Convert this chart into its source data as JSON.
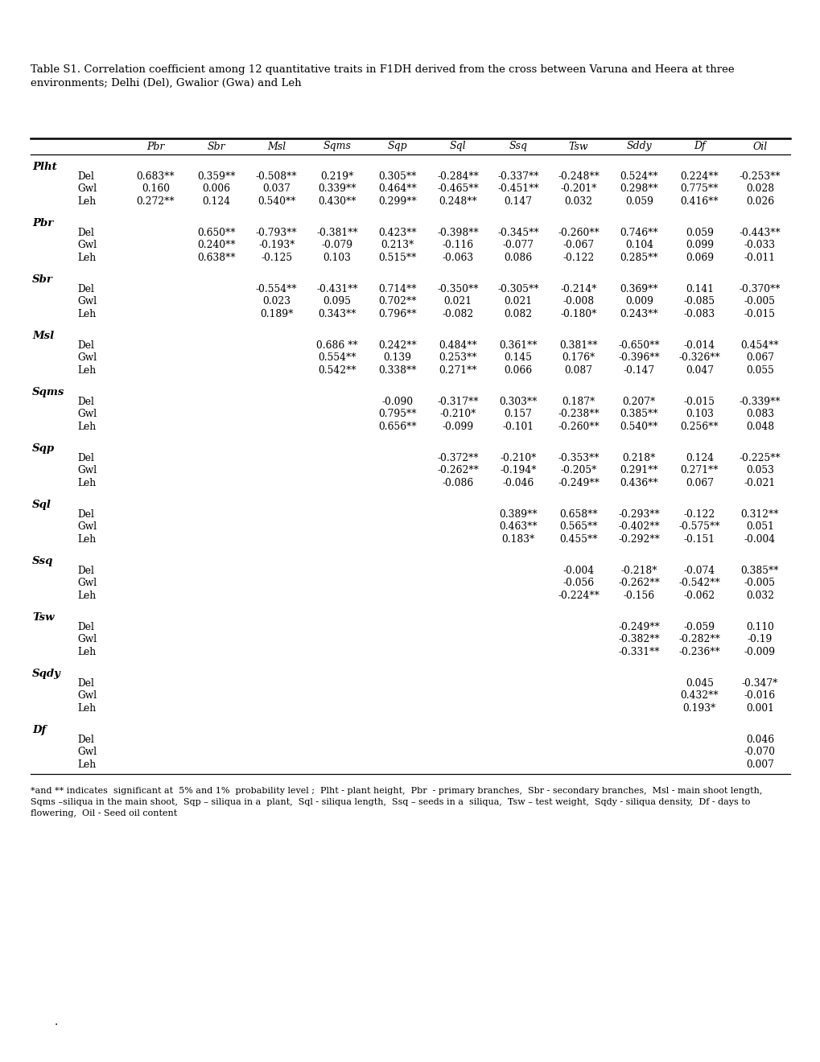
{
  "title": "Table S1. Correlation coefficient among 12 quantitative traits in F1DH derived from the cross between Varuna and Heera at three\nenvironments; Delhi (Del), Gwalior (Gwa) and Leh",
  "footnote": "*and ** indicates  significant at  5% and 1%  probability level ;  Plht - plant height,  Pbr  - primary branches,  Sbr - secondary branches,  Msl - main shoot length,\nSqms –siliqua in the main shoot,  Sqp – siliqua in a  plant,  Sql - siliqua length,  Ssq – seeds in a  siliqua,  Tsw – test weight,  Sqdy - siliqua density,  Df - days to\nflowering,  Oil - Seed oil content",
  "dot": ".",
  "columns": [
    "Pbr",
    "Sbr",
    "Msl",
    "Sqms",
    "Sqp",
    "Sql",
    "Ssq",
    "Tsw",
    "Sddy",
    "Df",
    "Oil"
  ],
  "row_groups": [
    {
      "label": "Plht",
      "rows": [
        {
          "env": "Del",
          "values": [
            "0.683**",
            "0.359**",
            "-0.508**",
            "0.219*",
            "0.305**",
            "-0.284**",
            "-0.337**",
            "-0.248**",
            "0.524**",
            "0.224**",
            "-0.253**"
          ]
        },
        {
          "env": "Gwl",
          "values": [
            "0.160",
            "0.006",
            "0.037",
            "0.339**",
            "0.464**",
            "-0.465**",
            "-0.451**",
            "-0.201*",
            "0.298**",
            "0.775**",
            "0.028"
          ]
        },
        {
          "env": "Leh",
          "values": [
            "0.272**",
            "0.124",
            "0.540**",
            "0.430**",
            "0.299**",
            "0.248**",
            "0.147",
            "0.032",
            "0.059",
            "0.416**",
            "0.026"
          ]
        }
      ]
    },
    {
      "label": "Pbr",
      "rows": [
        {
          "env": "Del",
          "values": [
            "",
            "0.650**",
            "-0.793**",
            "-0.381**",
            "0.423**",
            "-0.398**",
            "-0.345**",
            "-0.260**",
            "0.746**",
            "0.059",
            "-0.443**"
          ]
        },
        {
          "env": "Gwl",
          "values": [
            "",
            "0.240**",
            "-0.193*",
            "-0.079",
            "0.213*",
            "-0.116",
            "-0.077",
            "-0.067",
            "0.104",
            "0.099",
            "-0.033"
          ]
        },
        {
          "env": "Leh",
          "values": [
            "",
            "0.638**",
            "-0.125",
            "0.103",
            "0.515**",
            "-0.063",
            "0.086",
            "-0.122",
            "0.285**",
            "0.069",
            "-0.011"
          ]
        }
      ]
    },
    {
      "label": "Sbr",
      "rows": [
        {
          "env": "Del",
          "values": [
            "",
            "",
            "-0.554**",
            "-0.431**",
            "0.714**",
            "-0.350**",
            "-0.305**",
            "-0.214*",
            "0.369**",
            "0.141",
            "-0.370**"
          ]
        },
        {
          "env": "Gwl",
          "values": [
            "",
            "",
            "0.023",
            "0.095",
            "0.702**",
            "0.021",
            "0.021",
            "-0.008",
            "0.009",
            "-0.085",
            "-0.005"
          ]
        },
        {
          "env": "Leh",
          "values": [
            "",
            "",
            "0.189*",
            "0.343**",
            "0.796**",
            "-0.082",
            "0.082",
            "-0.180*",
            "0.243**",
            "-0.083",
            "-0.015"
          ]
        }
      ]
    },
    {
      "label": "Msl",
      "rows": [
        {
          "env": "Del",
          "values": [
            "",
            "",
            "",
            "0.686 **",
            "0.242**",
            "0.484**",
            "0.361**",
            "0.381**",
            "-0.650**",
            "-0.014",
            "0.454**"
          ]
        },
        {
          "env": "Gwl",
          "values": [
            "",
            "",
            "",
            "0.554**",
            "0.139",
            "0.253**",
            "0.145",
            "0.176*",
            "-0.396**",
            "-0.326**",
            "0.067"
          ]
        },
        {
          "env": "Leh",
          "values": [
            "",
            "",
            "",
            "0.542**",
            "0.338**",
            "0.271**",
            "0.066",
            "0.087",
            "-0.147",
            "0.047",
            "0.055"
          ]
        }
      ]
    },
    {
      "label": "Sqms",
      "rows": [
        {
          "env": "Del",
          "values": [
            "",
            "",
            "",
            "",
            "-0.090",
            "-0.317**",
            "0.303**",
            "0.187*",
            "0.207*",
            "-0.015",
            "-0.339**"
          ]
        },
        {
          "env": "Gwl",
          "values": [
            "",
            "",
            "",
            "",
            "0.795**",
            "-0.210*",
            "0.157",
            "-0.238**",
            "0.385**",
            "0.103",
            "0.083"
          ]
        },
        {
          "env": "Leh",
          "values": [
            "",
            "",
            "",
            "",
            "0.656**",
            "-0.099",
            "-0.101",
            "-0.260**",
            "0.540**",
            "0.256**",
            "0.048"
          ]
        }
      ]
    },
    {
      "label": "Sqp",
      "rows": [
        {
          "env": "Del",
          "values": [
            "",
            "",
            "",
            "",
            "",
            "-0.372**",
            "-0.210*",
            "-0.353**",
            "0.218*",
            "0.124",
            "-0.225**"
          ]
        },
        {
          "env": "Gwl",
          "values": [
            "",
            "",
            "",
            "",
            "",
            "-0.262**",
            "-0.194*",
            "-0.205*",
            "0.291**",
            "0.271**",
            "0.053"
          ]
        },
        {
          "env": "Leh",
          "values": [
            "",
            "",
            "",
            "",
            "",
            "-0.086",
            "-0.046",
            "-0.249**",
            "0.436**",
            "0.067",
            "-0.021"
          ]
        }
      ]
    },
    {
      "label": "Sql",
      "rows": [
        {
          "env": "Del",
          "values": [
            "",
            "",
            "",
            "",
            "",
            "",
            "0.389**",
            "0.658**",
            "-0.293**",
            "-0.122",
            "0.312**"
          ]
        },
        {
          "env": "Gwl",
          "values": [
            "",
            "",
            "",
            "",
            "",
            "",
            "0.463**",
            "0.565**",
            "-0.402**",
            "-0.575**",
            "0.051"
          ]
        },
        {
          "env": "Leh",
          "values": [
            "",
            "",
            "",
            "",
            "",
            "",
            "0.183*",
            "0.455**",
            "-0.292**",
            "-0.151",
            "-0.004"
          ]
        }
      ]
    },
    {
      "label": "Ssq",
      "rows": [
        {
          "env": "Del",
          "values": [
            "",
            "",
            "",
            "",
            "",
            "",
            "",
            "-0.004",
            "-0.218*",
            "-0.074",
            "0.385**"
          ]
        },
        {
          "env": "Gwl",
          "values": [
            "",
            "",
            "",
            "",
            "",
            "",
            "",
            "-0.056",
            "-0.262**",
            "-0.542**",
            "-0.005"
          ]
        },
        {
          "env": "Leh",
          "values": [
            "",
            "",
            "",
            "",
            "",
            "",
            "",
            "-0.224**",
            "-0.156",
            "-0.062",
            "0.032"
          ]
        }
      ]
    },
    {
      "label": "Tsw",
      "rows": [
        {
          "env": "Del",
          "values": [
            "",
            "",
            "",
            "",
            "",
            "",
            "",
            "",
            "-0.249**",
            "-0.059",
            "0.110"
          ]
        },
        {
          "env": "Gwl",
          "values": [
            "",
            "",
            "",
            "",
            "",
            "",
            "",
            "",
            "-0.382**",
            "-0.282**",
            "-0.19"
          ]
        },
        {
          "env": "Leh",
          "values": [
            "",
            "",
            "",
            "",
            "",
            "",
            "",
            "",
            "-0.331**",
            "-0.236**",
            "-0.009"
          ]
        }
      ]
    },
    {
      "label": "Sqdy",
      "rows": [
        {
          "env": "Del",
          "values": [
            "",
            "",
            "",
            "",
            "",
            "",
            "",
            "",
            "",
            "0.045",
            "-0.347*"
          ]
        },
        {
          "env": "Gwl",
          "values": [
            "",
            "",
            "",
            "",
            "",
            "",
            "",
            "",
            "",
            "0.432**",
            "-0.016"
          ]
        },
        {
          "env": "Leh",
          "values": [
            "",
            "",
            "",
            "",
            "",
            "",
            "",
            "",
            "",
            "0.193*",
            "0.001"
          ]
        }
      ]
    },
    {
      "label": "Df",
      "rows": [
        {
          "env": "Del",
          "values": [
            "",
            "",
            "",
            "",
            "",
            "",
            "",
            "",
            "",
            "",
            "0.046"
          ]
        },
        {
          "env": "Gwl",
          "values": [
            "",
            "",
            "",
            "",
            "",
            "",
            "",
            "",
            "",
            "",
            "-0.070"
          ]
        },
        {
          "env": "Leh",
          "values": [
            "",
            "",
            "",
            "",
            "",
            "",
            "",
            "",
            "",
            "",
            "0.007"
          ]
        }
      ]
    }
  ]
}
